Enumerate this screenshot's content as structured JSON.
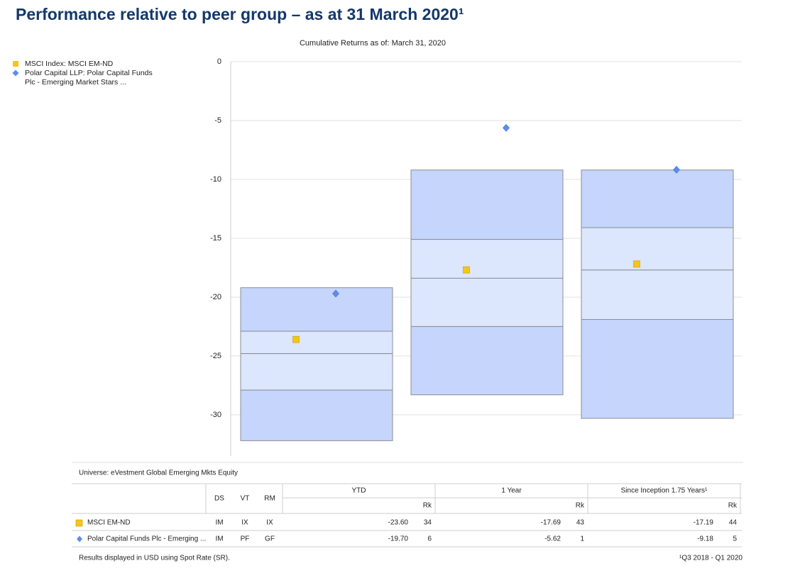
{
  "chart_data": {
    "type": "quartile",
    "heading": "Performance relative to peer group – as at 31 March 2020¹",
    "title": "Cumulative Returns as of: March 31, 2020",
    "ylim": [
      -33.5,
      0
    ],
    "yticks": [
      0,
      -5,
      -10,
      -15,
      -20,
      -25,
      -30
    ],
    "grid": true,
    "ranges": [
      [
        -19.2,
        -22.9,
        -24.8,
        -27.9,
        -32.2
      ],
      [
        -9.2,
        -15.1,
        -18.4,
        -22.5,
        -28.3
      ],
      [
        -9.2,
        -14.1,
        -17.7,
        -21.9,
        -30.3
      ]
    ],
    "range_colors": [
      "#c5d5fb",
      "#dce6fd",
      "#dce6fd",
      "#c5d5fb"
    ],
    "series": [
      {
        "name": "MSCI Index: MSCI EM-ND",
        "marker": "square",
        "color": "#f5c518",
        "values": [
          -23.6,
          -17.69,
          -17.19
        ]
      },
      {
        "name": "Polar Capital LLP: Polar Capital Funds Plc - Emerging Market Stars ...",
        "marker": "diamond",
        "color": "#5b8def",
        "values": [
          -19.7,
          -5.62,
          -9.18
        ]
      }
    ]
  },
  "table": {
    "universe": "Universe: eVestment Global Emerging Mkts Equity",
    "columns": [
      "DS",
      "VT",
      "RM"
    ],
    "periods": [
      "YTD",
      "1 Year",
      "Since Inception 1.75 Years¹"
    ],
    "rank_label": "Rk",
    "rows": [
      {
        "name": "MSCI EM-ND",
        "codes": [
          "IM",
          "IX",
          "IX"
        ],
        "cells": [
          "-23.60",
          "34",
          "-17.69",
          "43",
          "-17.19",
          "44"
        ]
      },
      {
        "name": "Polar Capital Funds Plc - Emerging ...",
        "codes": [
          "IM",
          "PF",
          "GF"
        ],
        "cells": [
          "-19.70",
          "6",
          "-5.62",
          "1",
          "-9.18",
          "5"
        ]
      }
    ],
    "footer_left": "Results displayed in USD using Spot Rate (SR).",
    "footer_right": "¹Q3 2018 - Q1 2020"
  }
}
